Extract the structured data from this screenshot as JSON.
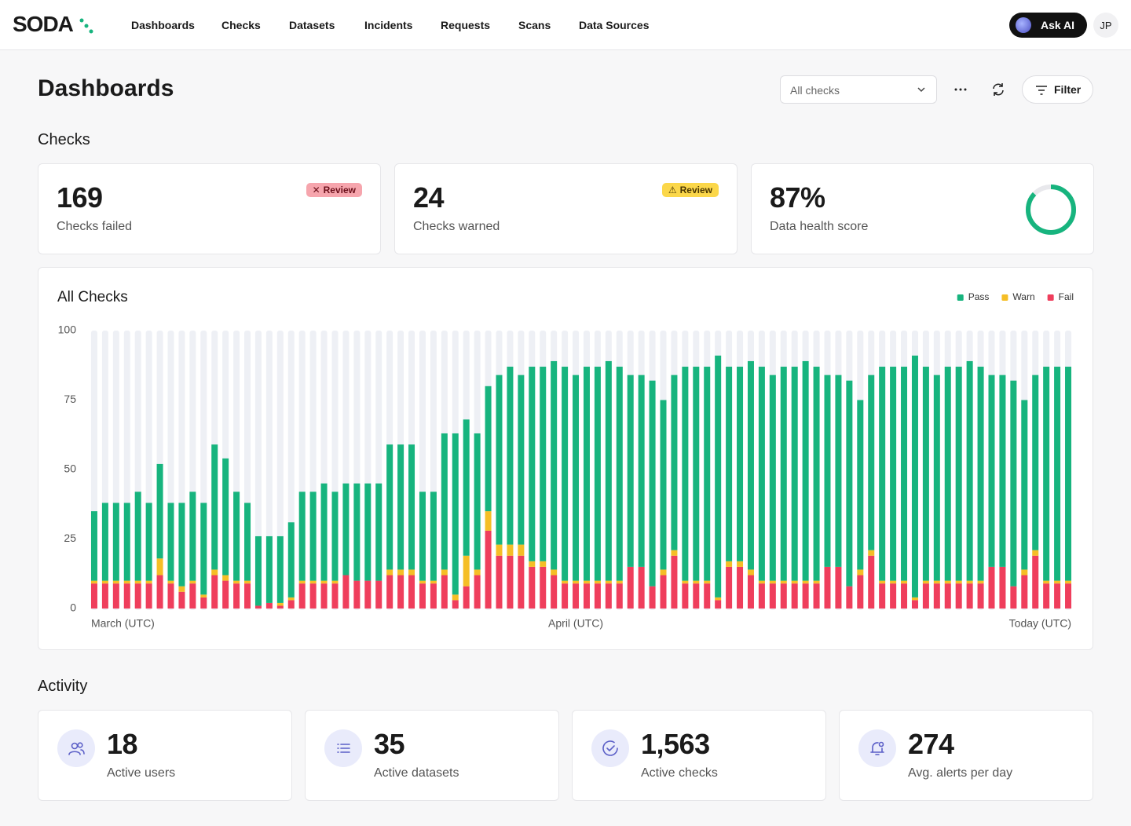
{
  "nav": {
    "logo": "SODA",
    "items": [
      "Dashboards",
      "Checks",
      "Datasets",
      "Incidents",
      "Requests",
      "Scans",
      "Data Sources"
    ],
    "ask_ai": "Ask AI",
    "avatar": "JP"
  },
  "header": {
    "title": "Dashboards",
    "select": "All checks",
    "filter": "Filter"
  },
  "checks": {
    "heading": "Checks",
    "cards": [
      {
        "value": "169",
        "label": "Checks failed",
        "badge": "Review"
      },
      {
        "value": "24",
        "label": "Checks warned",
        "badge": "Review"
      },
      {
        "value": 87,
        "value_label": "87%",
        "label": "Data health score"
      }
    ]
  },
  "chart_data": {
    "type": "bar",
    "stacked": true,
    "title": "All Checks",
    "legend": "top-right",
    "grid": false,
    "categories": [
      "March (UTC)",
      null,
      null,
      null,
      null,
      null,
      null,
      null,
      null,
      null,
      null,
      null,
      null,
      null,
      null,
      null,
      null,
      null,
      null,
      null,
      null,
      null,
      null,
      null,
      null,
      null,
      null,
      null,
      null,
      null,
      null,
      null,
      null,
      null,
      null,
      null,
      null,
      null,
      null,
      null,
      null,
      null,
      null,
      null,
      "April (UTC)",
      null,
      null,
      null,
      null,
      null,
      null,
      null,
      null,
      null,
      null,
      null,
      null,
      null,
      null,
      null,
      null,
      null,
      null,
      null,
      null,
      null,
      null,
      null,
      null,
      null,
      null,
      null,
      null,
      null,
      null,
      null,
      null,
      null,
      null,
      null,
      null,
      null,
      null,
      null,
      null,
      null,
      null,
      null,
      null,
      "Today (UTC)"
    ],
    "series": [
      {
        "name": "Pass",
        "color": "#17b47e",
        "values": [
          25,
          28,
          28,
          28,
          32,
          28,
          34,
          28,
          30,
          32,
          33,
          45,
          42,
          32,
          28,
          25,
          24,
          24,
          27,
          32,
          32,
          35,
          32,
          33,
          35,
          35,
          35,
          45,
          45,
          45,
          32,
          32,
          49,
          58,
          49,
          49,
          45,
          61,
          64,
          61,
          70,
          70,
          75,
          77,
          74,
          77,
          77,
          79,
          77,
          69,
          69,
          74,
          61,
          63,
          77,
          77,
          77,
          87,
          70,
          70,
          75,
          77,
          74,
          77,
          77,
          79,
          77,
          69,
          69,
          74,
          61,
          63,
          77,
          77,
          77,
          87,
          77,
          74,
          77,
          77,
          79,
          77,
          69,
          69,
          74,
          61,
          63,
          77,
          77,
          77
        ]
      },
      {
        "name": "Warn",
        "color": "#f5be26",
        "values": [
          1,
          1,
          1,
          1,
          1,
          1,
          6,
          1,
          2,
          1,
          1,
          2,
          2,
          1,
          1,
          0,
          0,
          1,
          1,
          1,
          1,
          1,
          1,
          0,
          0,
          0,
          0,
          2,
          2,
          2,
          1,
          1,
          2,
          2,
          11,
          2,
          7,
          4,
          4,
          4,
          2,
          2,
          2,
          1,
          1,
          1,
          1,
          1,
          1,
          0,
          0,
          0,
          2,
          2,
          1,
          1,
          1,
          1,
          2,
          2,
          2,
          1,
          1,
          1,
          1,
          1,
          1,
          0,
          0,
          0,
          2,
          2,
          1,
          1,
          1,
          1,
          1,
          1,
          1,
          1,
          1,
          1,
          0,
          0,
          0,
          2,
          2,
          1,
          1,
          1
        ]
      },
      {
        "name": "Fail",
        "color": "#ef3e5c",
        "values": [
          9,
          9,
          9,
          9,
          9,
          9,
          12,
          9,
          6,
          9,
          4,
          12,
          10,
          9,
          9,
          1,
          2,
          1,
          3,
          9,
          9,
          9,
          9,
          12,
          10,
          10,
          10,
          12,
          12,
          12,
          9,
          9,
          12,
          3,
          8,
          12,
          28,
          19,
          19,
          19,
          15,
          15,
          12,
          9,
          9,
          9,
          9,
          9,
          9,
          15,
          15,
          8,
          12,
          19,
          9,
          9,
          9,
          3,
          15,
          15,
          12,
          9,
          9,
          9,
          9,
          9,
          9,
          15,
          15,
          8,
          12,
          19,
          9,
          9,
          9,
          3,
          9,
          9,
          9,
          9,
          9,
          9,
          15,
          15,
          8,
          12,
          19,
          9,
          9,
          9
        ]
      }
    ],
    "ylim": [
      0,
      100
    ],
    "yticks": [
      0,
      25,
      50,
      75,
      100
    ]
  },
  "activity": {
    "heading": "Activity",
    "cards": [
      {
        "value": "18",
        "label": "Active users"
      },
      {
        "value": "35",
        "label": "Active datasets"
      },
      {
        "value": "1,563",
        "label": "Active checks"
      },
      {
        "value": "274",
        "label": "Avg. alerts per day"
      }
    ]
  }
}
